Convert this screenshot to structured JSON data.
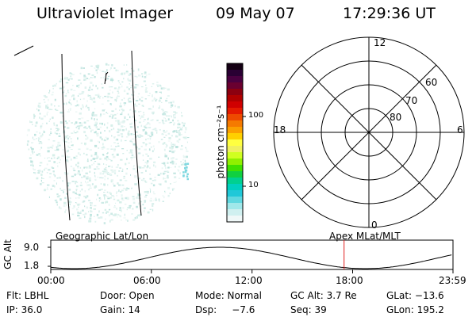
{
  "header": {
    "instrument": "Ultraviolet Imager",
    "date": "09 May 07",
    "time": "17:29:36 UT"
  },
  "colorbar": {
    "label": "photon cm⁻²s⁻¹",
    "ticks": [
      "100",
      "10"
    ],
    "colors": [
      "#140014",
      "#2a0033",
      "#4a0040",
      "#6a0030",
      "#8c0010",
      "#b00000",
      "#d00000",
      "#e41a00",
      "#ee4a00",
      "#f57a00",
      "#fba000",
      "#ffd000",
      "#ffff40",
      "#f0f060",
      "#d0ff20",
      "#90f000",
      "#40e000",
      "#10d040",
      "#00d090",
      "#00d0c0",
      "#20c8d8",
      "#60d8e0",
      "#a0e8ea",
      "#d0f0f0",
      "#f0f8f8"
    ]
  },
  "polar_grid": {
    "mlt_labels": [
      "12",
      "18",
      "6",
      "0"
    ],
    "lat_labels": [
      "60",
      "70",
      "80"
    ]
  },
  "timeline": {
    "ylabel": "GC Alt",
    "yticks": [
      "9.0",
      "1.8"
    ],
    "left_label": "Geographic Lat/Lon",
    "right_label": "Apex MLat/MLT",
    "xticks": [
      "00:00",
      "06:00",
      "12:00",
      "18:00",
      "23:59"
    ],
    "marker_time_hours": 17.49,
    "marker_color": "#e02020"
  },
  "info": {
    "flt": "Flt: LBHL",
    "door": "Door: Open",
    "mode": "Mode: Normal",
    "gc_alt": "GC Alt: 3.7 Re",
    "glat": "GLat: −13.6",
    "ip": "IP: 36.0",
    "gain": "Gain: 14",
    "dsp": "Dsp:     −7.6",
    "seq": "Seq: 39",
    "glon": "GLon: 195.2"
  }
}
